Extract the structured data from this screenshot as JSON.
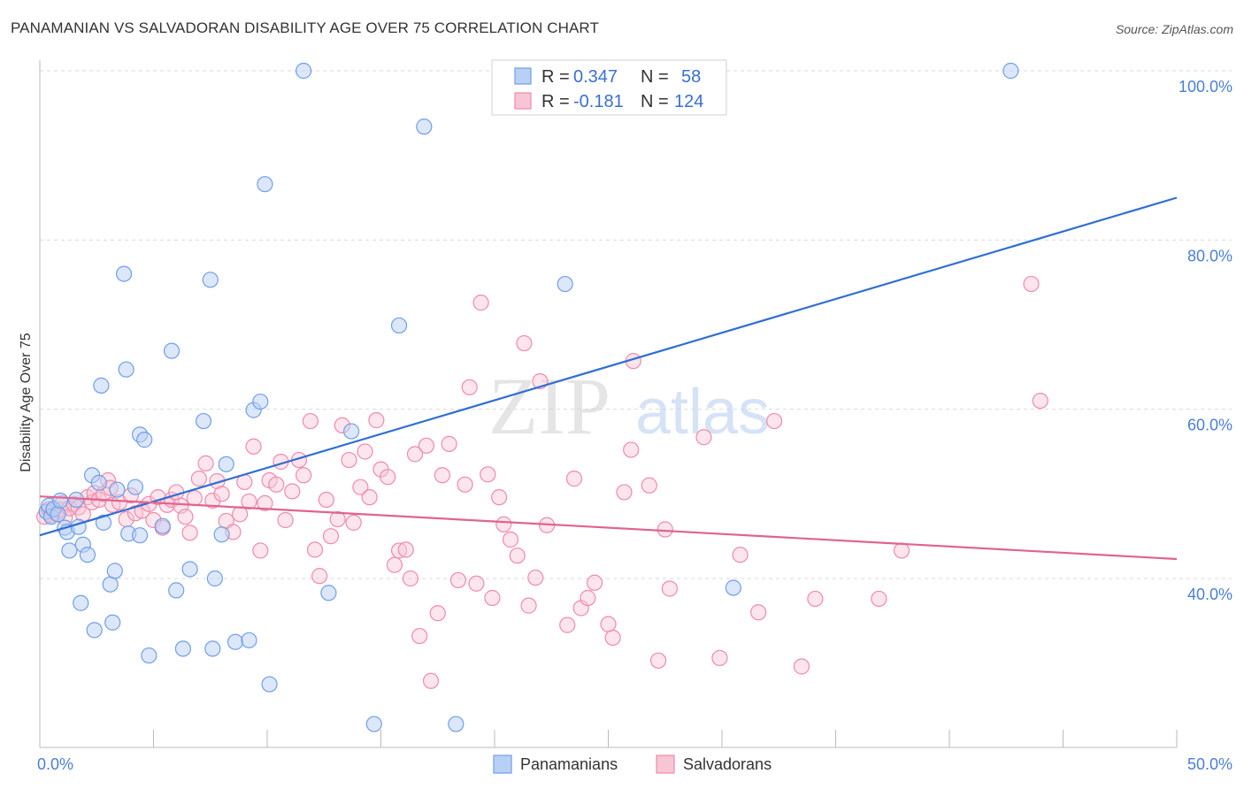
{
  "title": "PANAMANIAN VS SALVADORAN DISABILITY AGE OVER 75 CORRELATION CHART",
  "source": "Source: ZipAtlas.com",
  "colors": {
    "panamanian": "#6f9fe8",
    "panamanian_fill": "#b9d0f5",
    "panamanian_line": "#2f6fd2",
    "salvadoran": "#f08aaa",
    "salvadoran_fill": "#f8c5d5",
    "salvadoran_line": "#e0648e",
    "tick_text": "#4a7fd4",
    "grid": "#d9d9d9"
  },
  "legend": {
    "rows": [
      {
        "r_label": "R =",
        "r_value": "0.347",
        "n_label": "N =",
        "n_value": "58"
      },
      {
        "r_label": "R =",
        "r_value": "-0.181",
        "n_label": "N =",
        "n_value": "124"
      }
    ]
  },
  "bottom_legend": [
    "Panamanians",
    "Salvadorans"
  ],
  "watermark": {
    "zip": "ZIP",
    "atlas": "atlas"
  },
  "chart_data": {
    "type": "scatter",
    "title": "PANAMANIAN VS SALVADORAN DISABILITY AGE OVER 75 CORRELATION CHART",
    "xlabel": "",
    "ylabel": "Disability Age Over 75",
    "xlim": [
      0,
      50
    ],
    "ylim": [
      21,
      102
    ],
    "x_tick_labels": [
      {
        "value": 0,
        "label": "0.0%"
      },
      {
        "value": 50,
        "label": "50.0%"
      }
    ],
    "y_tick_labels": [
      {
        "value": 100,
        "label": "100.0%"
      },
      {
        "value": 80,
        "label": "80.0%"
      },
      {
        "value": 60,
        "label": "60.0%"
      },
      {
        "value": 40,
        "label": "40.0%"
      }
    ],
    "y_gridlines": [
      100,
      80,
      60,
      40
    ],
    "grid": true,
    "legend_position": "top-center",
    "series": [
      {
        "name": "Panamanians",
        "r": 0.347,
        "n": 58,
        "trend": {
          "x": [
            0,
            50
          ],
          "y": [
            45.1,
            85.0
          ]
        },
        "points": [
          [
            0.3,
            47.9
          ],
          [
            0.4,
            48.6
          ],
          [
            0.5,
            47.3
          ],
          [
            0.6,
            48.2
          ],
          [
            0.8,
            47.6
          ],
          [
            0.9,
            49.2
          ],
          [
            1.1,
            46.0
          ],
          [
            1.2,
            45.5
          ],
          [
            1.3,
            43.3
          ],
          [
            1.6,
            49.3
          ],
          [
            1.7,
            46.1
          ],
          [
            1.9,
            44.0
          ],
          [
            2.1,
            42.8
          ],
          [
            1.8,
            37.1
          ],
          [
            2.3,
            52.2
          ],
          [
            2.4,
            33.9
          ],
          [
            2.6,
            51.3
          ],
          [
            2.7,
            62.8
          ],
          [
            2.8,
            46.6
          ],
          [
            3.1,
            39.3
          ],
          [
            3.2,
            34.8
          ],
          [
            3.3,
            40.9
          ],
          [
            3.4,
            50.5
          ],
          [
            3.7,
            76.0
          ],
          [
            3.8,
            64.7
          ],
          [
            3.9,
            45.3
          ],
          [
            4.2,
            50.8
          ],
          [
            4.4,
            45.1
          ],
          [
            4.4,
            57.0
          ],
          [
            4.6,
            56.4
          ],
          [
            4.8,
            30.9
          ],
          [
            5.4,
            46.2
          ],
          [
            5.8,
            66.9
          ],
          [
            6.0,
            38.6
          ],
          [
            6.3,
            31.7
          ],
          [
            6.6,
            41.1
          ],
          [
            7.2,
            58.6
          ],
          [
            7.5,
            75.3
          ],
          [
            7.6,
            31.7
          ],
          [
            7.7,
            40.0
          ],
          [
            8.0,
            45.2
          ],
          [
            8.2,
            53.5
          ],
          [
            8.6,
            32.5
          ],
          [
            9.2,
            32.7
          ],
          [
            9.4,
            59.9
          ],
          [
            9.7,
            60.9
          ],
          [
            9.9,
            86.6
          ],
          [
            10.1,
            27.5
          ],
          [
            11.6,
            100.0
          ],
          [
            12.7,
            38.3
          ],
          [
            13.7,
            57.4
          ],
          [
            14.7,
            22.8
          ],
          [
            15.8,
            69.9
          ],
          [
            16.9,
            93.4
          ],
          [
            18.3,
            22.8
          ],
          [
            23.1,
            74.8
          ],
          [
            30.5,
            38.9
          ],
          [
            42.7,
            100.0
          ]
        ]
      },
      {
        "name": "Salvadorans",
        "r": -0.181,
        "n": 124,
        "trend": {
          "x": [
            0,
            50
          ],
          "y": [
            49.7,
            42.3
          ]
        },
        "points": [
          [
            0.2,
            47.3
          ],
          [
            0.3,
            47.9
          ],
          [
            0.4,
            48.2
          ],
          [
            0.5,
            47.5
          ],
          [
            0.6,
            48.0
          ],
          [
            0.7,
            47.7
          ],
          [
            0.9,
            48.1
          ],
          [
            1.0,
            48.9
          ],
          [
            1.1,
            47.2
          ],
          [
            1.3,
            48.3
          ],
          [
            1.5,
            48.8
          ],
          [
            1.7,
            48.4
          ],
          [
            1.9,
            47.6
          ],
          [
            2.1,
            49.6
          ],
          [
            2.3,
            49.0
          ],
          [
            2.4,
            50.1
          ],
          [
            2.6,
            49.3
          ],
          [
            2.8,
            50.0
          ],
          [
            3.0,
            51.6
          ],
          [
            3.1,
            50.7
          ],
          [
            3.2,
            48.7
          ],
          [
            3.5,
            49.0
          ],
          [
            3.8,
            47.0
          ],
          [
            4.0,
            49.8
          ],
          [
            4.2,
            47.7
          ],
          [
            4.5,
            48.0
          ],
          [
            4.8,
            48.8
          ],
          [
            5.0,
            46.9
          ],
          [
            5.2,
            49.6
          ],
          [
            5.4,
            46.0
          ],
          [
            5.6,
            48.7
          ],
          [
            5.8,
            49.3
          ],
          [
            6.0,
            50.2
          ],
          [
            6.2,
            48.6
          ],
          [
            6.4,
            47.3
          ],
          [
            6.6,
            45.4
          ],
          [
            6.8,
            49.5
          ],
          [
            7.0,
            51.8
          ],
          [
            7.3,
            53.6
          ],
          [
            7.6,
            49.2
          ],
          [
            7.8,
            51.5
          ],
          [
            8.0,
            50.0
          ],
          [
            8.2,
            46.8
          ],
          [
            8.5,
            45.5
          ],
          [
            8.8,
            47.6
          ],
          [
            9.0,
            51.4
          ],
          [
            9.2,
            49.1
          ],
          [
            9.4,
            55.6
          ],
          [
            9.7,
            43.3
          ],
          [
            9.9,
            48.9
          ],
          [
            10.1,
            51.6
          ],
          [
            10.4,
            51.1
          ],
          [
            10.6,
            53.8
          ],
          [
            10.8,
            46.9
          ],
          [
            11.1,
            50.3
          ],
          [
            11.4,
            54.0
          ],
          [
            11.6,
            52.2
          ],
          [
            11.9,
            58.6
          ],
          [
            12.1,
            43.4
          ],
          [
            12.3,
            40.3
          ],
          [
            12.6,
            49.3
          ],
          [
            12.8,
            45.0
          ],
          [
            13.1,
            47.0
          ],
          [
            13.3,
            58.1
          ],
          [
            13.6,
            54.0
          ],
          [
            13.8,
            46.6
          ],
          [
            14.1,
            50.8
          ],
          [
            14.3,
            55.0
          ],
          [
            14.5,
            49.6
          ],
          [
            14.8,
            58.7
          ],
          [
            15.0,
            52.9
          ],
          [
            15.3,
            52.0
          ],
          [
            15.6,
            41.6
          ],
          [
            15.8,
            43.3
          ],
          [
            16.1,
            43.4
          ],
          [
            16.3,
            40.0
          ],
          [
            16.5,
            54.7
          ],
          [
            16.7,
            33.2
          ],
          [
            17.0,
            55.7
          ],
          [
            17.2,
            27.9
          ],
          [
            17.5,
            35.9
          ],
          [
            17.7,
            52.2
          ],
          [
            18.0,
            55.9
          ],
          [
            18.4,
            39.8
          ],
          [
            18.7,
            51.1
          ],
          [
            18.9,
            62.6
          ],
          [
            19.2,
            39.4
          ],
          [
            19.4,
            72.6
          ],
          [
            19.7,
            52.3
          ],
          [
            19.9,
            37.7
          ],
          [
            20.2,
            49.6
          ],
          [
            20.4,
            46.4
          ],
          [
            20.7,
            44.6
          ],
          [
            21.0,
            42.7
          ],
          [
            21.3,
            67.8
          ],
          [
            21.5,
            36.8
          ],
          [
            21.8,
            40.1
          ],
          [
            22.0,
            63.3
          ],
          [
            22.3,
            46.3
          ],
          [
            23.2,
            34.5
          ],
          [
            23.5,
            51.8
          ],
          [
            23.8,
            36.5
          ],
          [
            24.1,
            37.7
          ],
          [
            24.4,
            39.5
          ],
          [
            25.0,
            34.6
          ],
          [
            25.2,
            33.0
          ],
          [
            25.7,
            50.2
          ],
          [
            26.0,
            55.2
          ],
          [
            26.1,
            65.7
          ],
          [
            26.8,
            51.0
          ],
          [
            27.2,
            30.3
          ],
          [
            27.5,
            45.8
          ],
          [
            27.7,
            38.8
          ],
          [
            29.2,
            56.7
          ],
          [
            29.9,
            30.6
          ],
          [
            30.8,
            42.8
          ],
          [
            31.6,
            36.0
          ],
          [
            32.3,
            58.6
          ],
          [
            33.5,
            29.6
          ],
          [
            34.1,
            37.6
          ],
          [
            36.9,
            37.6
          ],
          [
            37.9,
            43.3
          ],
          [
            43.6,
            74.8
          ],
          [
            44.0,
            61.0
          ]
        ]
      }
    ]
  }
}
